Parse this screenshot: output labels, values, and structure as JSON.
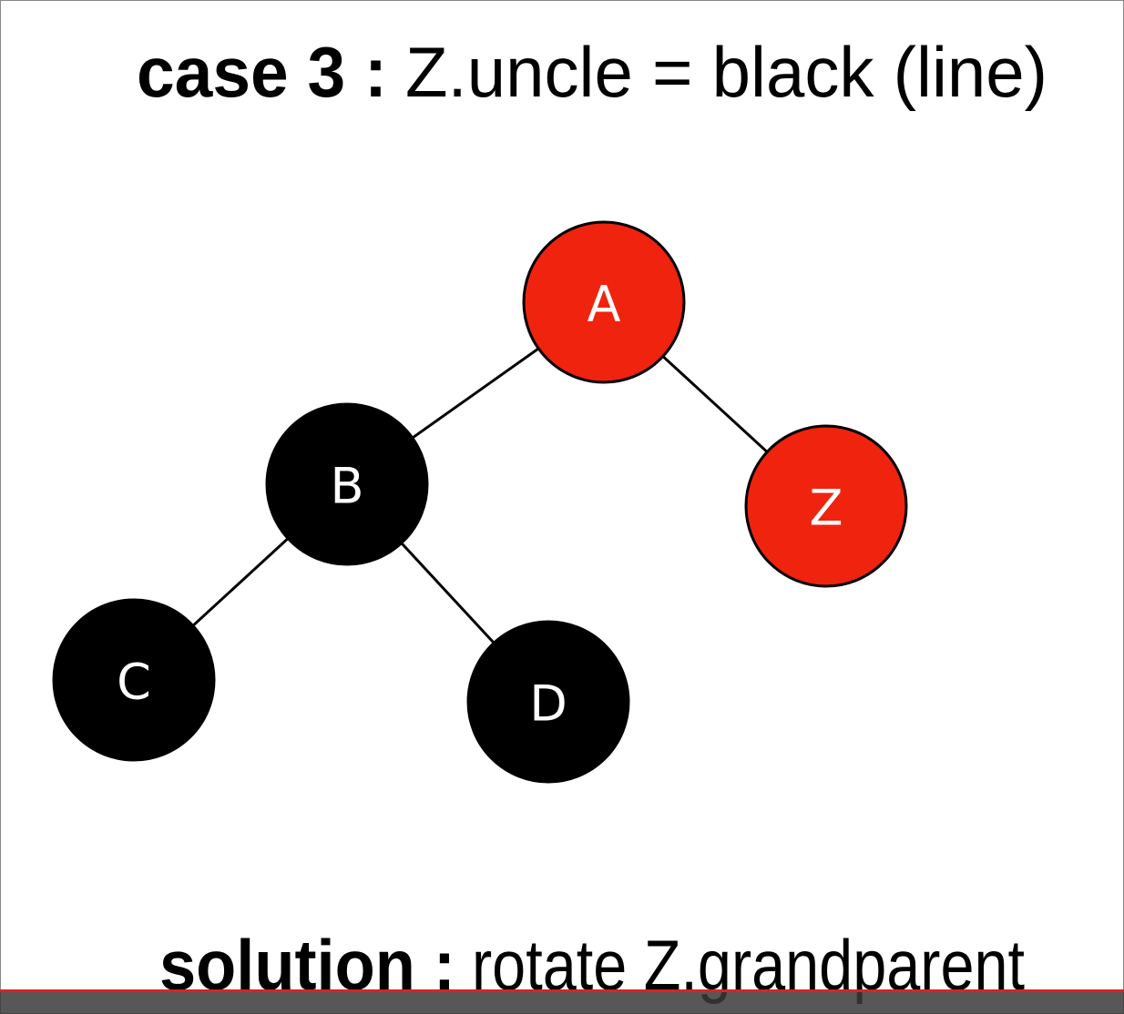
{
  "header": {
    "title_bold": "case 3 :",
    "title_rest": "Z.uncle = black (line)"
  },
  "nodes": [
    {
      "label": "A",
      "color": "#f0230f"
    },
    {
      "label": "B",
      "color": "#000000"
    },
    {
      "label": "Z",
      "color": "#f0230f"
    },
    {
      "label": "C",
      "color": "#000000"
    },
    {
      "label": "D",
      "color": "#000000"
    }
  ],
  "footer": {
    "solution_bold": "solution :",
    "solution_rest": "rotate Z.grandparent"
  }
}
